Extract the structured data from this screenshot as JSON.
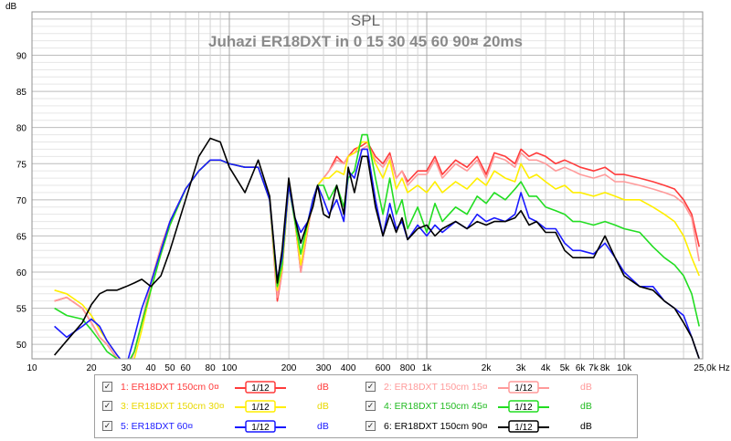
{
  "chart_data": {
    "type": "line",
    "title": "SPL",
    "subtitle": "Juhazi ER18DXT in 0 15 30 45 60 90¤ 20ms",
    "ylabel": "dB",
    "xunit": "Hz",
    "xscale": "log",
    "xlim": [
      10,
      25000
    ],
    "ylim": [
      48,
      96
    ],
    "yticks": [
      50,
      55,
      60,
      65,
      70,
      75,
      80,
      85,
      90
    ],
    "xticks": [
      {
        "v": 10,
        "label": "10"
      },
      {
        "v": 20,
        "label": "20"
      },
      {
        "v": 30,
        "label": "30"
      },
      {
        "v": 40,
        "label": "40"
      },
      {
        "v": 50,
        "label": "50"
      },
      {
        "v": 60,
        "label": "60"
      },
      {
        "v": 80,
        "label": "80"
      },
      {
        "v": 100,
        "label": "100"
      },
      {
        "v": 200,
        "label": "200"
      },
      {
        "v": 300,
        "label": "300"
      },
      {
        "v": 400,
        "label": "400"
      },
      {
        "v": 600,
        "label": "600"
      },
      {
        "v": 800,
        "label": "800"
      },
      {
        "v": 1000,
        "label": "1k"
      },
      {
        "v": 2000,
        "label": "2k"
      },
      {
        "v": 3000,
        "label": "3k"
      },
      {
        "v": 4000,
        "label": "4k"
      },
      {
        "v": 5000,
        "label": "5k"
      },
      {
        "v": 6000,
        "label": "6k"
      },
      {
        "v": 7000,
        "label": "7k"
      },
      {
        "v": 8000,
        "label": "8k"
      },
      {
        "v": 10000,
        "label": "10k"
      },
      {
        "v": 25000,
        "label": "25,0k Hz"
      }
    ],
    "grid": true,
    "legend_position": "bottom",
    "series": [
      {
        "name": "1: ER18DXT 150cm 0¤",
        "color": "#ff3b3b",
        "smoothing": "1/12",
        "unit": "dB",
        "x": [
          13,
          15,
          18,
          20,
          22,
          24,
          27,
          30,
          33,
          36,
          40,
          45,
          50,
          60,
          70,
          80,
          90,
          100,
          120,
          140,
          160,
          175,
          185,
          200,
          215,
          230,
          250,
          265,
          280,
          300,
          320,
          350,
          380,
          400,
          430,
          470,
          500,
          550,
          600,
          650,
          700,
          750,
          800,
          900,
          1000,
          1100,
          1200,
          1400,
          1600,
          1800,
          2000,
          2200,
          2500,
          2800,
          3000,
          3300,
          3600,
          4000,
          4500,
          5000,
          5500,
          6000,
          7000,
          8000,
          9000,
          10000,
          12000,
          14000,
          16000,
          18000,
          20000,
          22000,
          24000
        ],
        "y": [
          56,
          56.5,
          55,
          53,
          51,
          50,
          48,
          46,
          49,
          53,
          58.5,
          63.5,
          67,
          71.5,
          74,
          75.5,
          75.5,
          75,
          74.5,
          74.5,
          70,
          56,
          60,
          72,
          67,
          60,
          66,
          70,
          72,
          73,
          74,
          76,
          75,
          76,
          77,
          77.5,
          78,
          76,
          75,
          76.5,
          73,
          74,
          72.5,
          74,
          74,
          76,
          73.5,
          75.5,
          74.5,
          76,
          73.5,
          76.5,
          76,
          75,
          77,
          76,
          76.5,
          76,
          75,
          75.5,
          75,
          74.5,
          74,
          74.5,
          73.5,
          73.5,
          73,
          72.5,
          72,
          71.5,
          70,
          68,
          63.5
        ]
      },
      {
        "name": "2: ER18DXT 150cm 15¤",
        "color": "#ff9a9a",
        "smoothing": "1/12",
        "unit": "dB",
        "x": [
          13,
          15,
          18,
          20,
          22,
          24,
          27,
          30,
          33,
          36,
          40,
          45,
          50,
          60,
          70,
          80,
          90,
          100,
          120,
          140,
          160,
          175,
          185,
          200,
          215,
          230,
          250,
          265,
          280,
          300,
          320,
          350,
          380,
          400,
          430,
          470,
          500,
          550,
          600,
          650,
          700,
          750,
          800,
          900,
          1000,
          1100,
          1200,
          1400,
          1600,
          1800,
          2000,
          2200,
          2500,
          2800,
          3000,
          3300,
          3600,
          4000,
          4500,
          5000,
          5500,
          6000,
          7000,
          8000,
          9000,
          10000,
          12000,
          14000,
          16000,
          18000,
          20000,
          22000,
          24000
        ],
        "y": [
          56,
          56.5,
          55,
          53,
          51,
          50,
          48,
          46,
          49,
          53,
          58.5,
          63.5,
          67,
          71.5,
          74,
          75.5,
          75.5,
          75,
          74.5,
          74.5,
          70,
          56.5,
          60,
          72,
          67,
          60,
          66,
          70,
          72,
          73,
          74,
          75.5,
          75,
          76,
          76.5,
          77,
          77.5,
          75.5,
          74.5,
          76,
          73,
          74,
          72,
          73.5,
          73.5,
          75.5,
          73,
          75,
          74,
          75.5,
          73,
          76,
          75.5,
          74.5,
          76.5,
          75.5,
          75.5,
          75,
          74,
          74.5,
          74,
          73.5,
          73,
          73.5,
          72.5,
          72.5,
          72,
          71.5,
          71,
          70.5,
          69.5,
          67.5,
          61.5
        ]
      },
      {
        "name": "3: ER18DXT 150cm 30¤",
        "color": "#ffee00",
        "smoothing": "1/12",
        "unit": "dB",
        "x": [
          13,
          15,
          18,
          20,
          22,
          24,
          27,
          30,
          33,
          36,
          40,
          45,
          50,
          60,
          70,
          80,
          90,
          100,
          120,
          140,
          160,
          175,
          185,
          200,
          215,
          230,
          250,
          265,
          280,
          300,
          320,
          350,
          380,
          400,
          430,
          470,
          500,
          550,
          600,
          650,
          700,
          750,
          800,
          900,
          1000,
          1100,
          1200,
          1400,
          1600,
          1800,
          2000,
          2200,
          2500,
          2800,
          3000,
          3300,
          3600,
          4000,
          4500,
          5000,
          5500,
          6000,
          7000,
          8000,
          9000,
          10000,
          12000,
          14000,
          16000,
          18000,
          20000,
          22000,
          24000
        ],
        "y": [
          57.5,
          57,
          55.5,
          54,
          52,
          50.5,
          48.5,
          46,
          48,
          52,
          57.5,
          62.5,
          66.5,
          71.5,
          74,
          75.5,
          75.5,
          75,
          74.5,
          74.5,
          70,
          57.5,
          60.5,
          72,
          67,
          61,
          66.5,
          70,
          72,
          73,
          73,
          74,
          73.5,
          76,
          76.5,
          78,
          78,
          75,
          73,
          75.5,
          71.5,
          73,
          71,
          72,
          71,
          72.5,
          71,
          72.5,
          71.5,
          73,
          72,
          74,
          73,
          72.5,
          75,
          73,
          73.5,
          72.5,
          71.5,
          72,
          71,
          71,
          70.5,
          71,
          70.5,
          70,
          70,
          69,
          68,
          67,
          65,
          62,
          59.5
        ]
      },
      {
        "name": "4: ER18DXT 150cm 45¤",
        "color": "#22dd22",
        "smoothing": "1/12",
        "unit": "dB",
        "x": [
          13,
          15,
          18,
          20,
          22,
          24,
          27,
          30,
          33,
          36,
          40,
          45,
          50,
          60,
          70,
          80,
          90,
          100,
          120,
          140,
          160,
          175,
          185,
          200,
          215,
          230,
          250,
          265,
          280,
          300,
          320,
          350,
          380,
          400,
          430,
          470,
          500,
          550,
          600,
          650,
          700,
          750,
          800,
          900,
          1000,
          1100,
          1200,
          1400,
          1600,
          1800,
          2000,
          2200,
          2500,
          2800,
          3000,
          3300,
          3600,
          4000,
          4500,
          5000,
          5500,
          6000,
          7000,
          8000,
          9000,
          10000,
          12000,
          14000,
          16000,
          18000,
          20000,
          22000,
          24000
        ],
        "y": [
          55,
          54,
          53.5,
          52,
          50.5,
          49,
          48,
          47,
          49,
          53,
          57.5,
          62.5,
          66.5,
          71.5,
          74,
          75.5,
          75.5,
          75,
          74.5,
          74.5,
          70,
          58,
          61,
          72,
          67,
          62.5,
          67,
          70,
          72,
          72,
          70,
          72,
          69,
          73,
          74,
          79,
          79,
          73,
          68,
          73,
          68,
          70,
          66,
          69,
          65.5,
          69.5,
          67,
          69,
          68,
          70.5,
          69.5,
          71,
          70,
          71.5,
          72.5,
          70.5,
          70.5,
          69,
          68.5,
          68,
          67,
          67,
          66.5,
          67,
          66.5,
          66,
          65.5,
          63.5,
          62,
          61,
          59.5,
          57,
          52.5
        ]
      },
      {
        "name": "5: ER18DXT 60¤",
        "color": "#1a1aff",
        "smoothing": "1/12",
        "unit": "dB",
        "x": [
          13,
          15,
          18,
          20,
          22,
          24,
          27,
          30,
          33,
          36,
          40,
          45,
          50,
          60,
          70,
          80,
          90,
          100,
          120,
          140,
          160,
          175,
          185,
          200,
          215,
          230,
          250,
          265,
          280,
          300,
          320,
          350,
          380,
          400,
          430,
          470,
          500,
          550,
          600,
          650,
          700,
          750,
          800,
          900,
          1000,
          1100,
          1200,
          1400,
          1600,
          1800,
          2000,
          2200,
          2500,
          2800,
          3000,
          3300,
          3600,
          4000,
          4500,
          5000,
          5500,
          6000,
          7000,
          8000,
          9000,
          10000,
          12000,
          14000,
          16000,
          18000,
          20000,
          22000,
          24000
        ],
        "y": [
          52.5,
          51,
          52.5,
          53.5,
          52.5,
          50.5,
          48.5,
          47,
          51,
          55,
          58.5,
          63,
          67,
          71.5,
          74,
          75.5,
          75.5,
          75,
          74.5,
          74.5,
          70,
          59,
          62,
          72,
          67.5,
          65.5,
          67,
          70,
          72,
          70,
          68,
          70,
          67,
          74,
          73,
          77,
          77,
          70,
          65,
          69.5,
          66,
          67,
          64.5,
          66.5,
          65,
          66.5,
          65.5,
          67,
          66,
          68,
          67,
          67.5,
          67,
          68,
          71,
          67.5,
          67,
          66,
          66,
          64,
          63,
          63,
          62.5,
          64,
          62,
          60,
          58,
          58,
          56,
          55,
          54,
          51,
          48
        ]
      },
      {
        "name": "6: ER18DXT 150cm 90¤",
        "color": "#000000",
        "smoothing": "1/12",
        "unit": "dB",
        "x": [
          13,
          15,
          18,
          20,
          22,
          24,
          27,
          30,
          33,
          36,
          40,
          45,
          50,
          60,
          70,
          80,
          90,
          100,
          120,
          140,
          160,
          175,
          185,
          200,
          215,
          230,
          250,
          265,
          280,
          300,
          320,
          350,
          380,
          400,
          430,
          470,
          500,
          550,
          600,
          650,
          700,
          750,
          800,
          900,
          1000,
          1100,
          1200,
          1400,
          1600,
          1800,
          2000,
          2200,
          2500,
          2800,
          3000,
          3300,
          3600,
          4000,
          4500,
          5000,
          5500,
          6000,
          7000,
          8000,
          9000,
          10000,
          12000,
          14000,
          16000,
          18000,
          20000,
          22000,
          24000
        ],
        "y": [
          48.5,
          50.5,
          53,
          55.5,
          57,
          57.5,
          57.5,
          58,
          58.5,
          59,
          58,
          59.5,
          63,
          70,
          76,
          78.5,
          78,
          74.5,
          71,
          75.5,
          70.5,
          58.5,
          63,
          73,
          67.5,
          64,
          67,
          69,
          72,
          68,
          67.5,
          72,
          68,
          74.5,
          71,
          76,
          76,
          69,
          65,
          68,
          65.5,
          67.5,
          64.5,
          66,
          66.5,
          65,
          66,
          67,
          66,
          67,
          66.5,
          67,
          67,
          67.5,
          68.5,
          66.5,
          67,
          65.5,
          65.5,
          63,
          62,
          62,
          62,
          65,
          62,
          59.5,
          58,
          57.5,
          56,
          55,
          53,
          51,
          48
        ]
      }
    ]
  },
  "legend": [
    {
      "label": "1: ER18DXT 150cm 0¤",
      "smoothing": "1/12",
      "unit": "dB",
      "checked": true
    },
    {
      "label": "2: ER18DXT 150cm 15¤",
      "smoothing": "1/12",
      "unit": "dB",
      "checked": true
    },
    {
      "label": "3: ER18DXT 150cm 30¤",
      "smoothing": "1/12",
      "unit": "dB",
      "checked": true
    },
    {
      "label": "4: ER18DXT 150cm 45¤",
      "smoothing": "1/12",
      "unit": "dB",
      "checked": true
    },
    {
      "label": "5: ER18DXT 60¤",
      "smoothing": "1/12",
      "unit": "dB",
      "checked": true
    },
    {
      "label": "6: ER18DXT 150cm 90¤",
      "smoothing": "1/12",
      "unit": "dB",
      "checked": true
    }
  ],
  "check_glyph": "✓"
}
